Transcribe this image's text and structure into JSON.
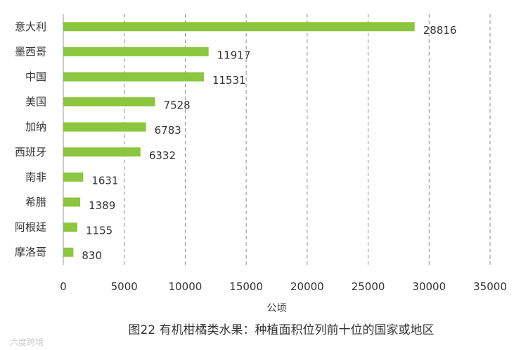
{
  "chart_data": {
    "type": "bar",
    "orientation": "horizontal",
    "categories": [
      "意大利",
      "墨西哥",
      "中国",
      "美国",
      "加纳",
      "西班牙",
      "南非",
      "希腊",
      "阿根廷",
      "摩洛哥"
    ],
    "values": [
      28816,
      11917,
      11531,
      7528,
      6783,
      6332,
      1631,
      1389,
      1155,
      830
    ],
    "xlabel": "公顷",
    "xlim": [
      0,
      35000
    ],
    "xticks": [
      0,
      5000,
      10000,
      15000,
      20000,
      25000,
      30000,
      35000
    ],
    "bar_color": "#8cc63f",
    "grid": "vertical dashed",
    "caption": "图22 有机柑橘类水果：种植面积位列前十位的国家或地区",
    "watermark": "六度跨境"
  }
}
